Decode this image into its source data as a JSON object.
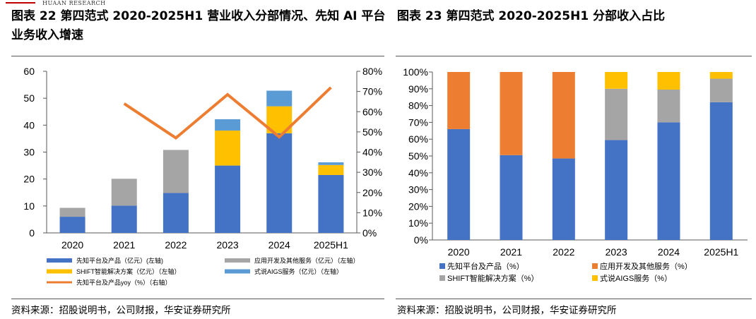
{
  "header": {
    "brand": "HUAAN RESEARCH"
  },
  "left_title": "图表 22 第四范式 2020-2025H1 营业收入分部情况、先知 AI 平台业务收入增速",
  "right_title": "图表 23 第四范式 2020-2025H1 分部收入占比",
  "left_source": "资料来源：招股说明书，公司财报，华安证券研究所",
  "right_source": "资料来源：招股说明书，公司财报，华安证券研究所",
  "colors": {
    "blue": "#4472C4",
    "orange": "#ED7D31",
    "gray": "#A5A5A5",
    "yellow": "#FFC000",
    "lightblue": "#5B9BD5"
  },
  "chart_data": [
    {
      "type": "bar",
      "stacked": true,
      "categories": [
        "2020",
        "2021",
        "2022",
        "2023",
        "2024",
        "2025H1"
      ],
      "ylim": [
        0,
        60
      ],
      "yticks": [
        "0",
        "10",
        "20",
        "30",
        "40",
        "50",
        "60"
      ],
      "y2lim": [
        0,
        0.8
      ],
      "y2ticks": [
        "0%",
        "10%",
        "20%",
        "30%",
        "40%",
        "50%",
        "60%",
        "70%",
        "80%"
      ],
      "series": [
        {
          "name": "先知平台及产品（亿元）(左轴)",
          "values": [
            6.0,
            10.1,
            14.8,
            25.0,
            37.0,
            21.5
          ]
        },
        {
          "name": "应用开发及其他服务（亿元）（左轴）",
          "values": [
            3.3,
            10.0,
            16.0,
            0,
            0,
            0
          ]
        },
        {
          "name": "SHIFT智能解决方案（亿元）（左轴）",
          "values": [
            0,
            0,
            0,
            13.0,
            10.0,
            3.7
          ]
        },
        {
          "name": "式说AIGS服务（亿元）（左轴）",
          "values": [
            0,
            0,
            0,
            4.2,
            5.8,
            1.0
          ]
        }
      ],
      "line_series": {
        "name": "先知平台及产品yoy（%）（右轴）",
        "x": [
          "2021",
          "2022",
          "2023",
          "2024",
          "2025H1"
        ],
        "values": [
          0.64,
          0.47,
          0.685,
          0.475,
          0.72
        ]
      },
      "legend": [
        {
          "label": "先知平台及产品（亿元）(左轴)",
          "kind": "bar",
          "color": "#4472C4"
        },
        {
          "label": "应用开发及其他服务（亿元）（左轴）",
          "kind": "bar",
          "color": "#A5A5A5"
        },
        {
          "label": "SHIFT智能解决方案（亿元）（左轴）",
          "kind": "bar",
          "color": "#FFC000"
        },
        {
          "label": "式说AIGS服务（亿元）（左轴）",
          "kind": "bar",
          "color": "#5B9BD5"
        },
        {
          "label": "先知平台及产品yoy（%）（右轴）",
          "kind": "line",
          "color": "#ED7D31"
        }
      ]
    },
    {
      "type": "bar",
      "stacked": true,
      "percent": true,
      "categories": [
        "2020",
        "2021",
        "2022",
        "2023",
        "2024",
        "2025H1"
      ],
      "ylim": [
        0,
        1
      ],
      "yticks": [
        "0%",
        "10%",
        "20%",
        "30%",
        "40%",
        "50%",
        "60%",
        "70%",
        "80%",
        "90%",
        "100%"
      ],
      "series": [
        {
          "name": "先知平台及产品（%）",
          "values": [
            0.66,
            0.505,
            0.485,
            0.595,
            0.7,
            0.82
          ]
        },
        {
          "name": "应用开发及其他服务（%）",
          "values": [
            0.34,
            0.495,
            0.515,
            0,
            0,
            0
          ]
        },
        {
          "name": "SHIFT智能解决方案（%）",
          "values": [
            0,
            0,
            0,
            0.305,
            0.195,
            0.14
          ]
        },
        {
          "name": "式说AIGS服务（%）",
          "values": [
            0,
            0,
            0,
            0.1,
            0.105,
            0.04
          ]
        }
      ],
      "legend": [
        {
          "label": "先知平台及产品（%）",
          "kind": "bar",
          "color": "#4472C4"
        },
        {
          "label": "应用开发及其他服务（%）",
          "kind": "bar",
          "color": "#ED7D31"
        },
        {
          "label": "SHIFT智能解决方案（%）",
          "kind": "bar",
          "color": "#A5A5A5"
        },
        {
          "label": "式说AIGS服务（%）",
          "kind": "bar",
          "color": "#FFC000"
        }
      ]
    }
  ]
}
